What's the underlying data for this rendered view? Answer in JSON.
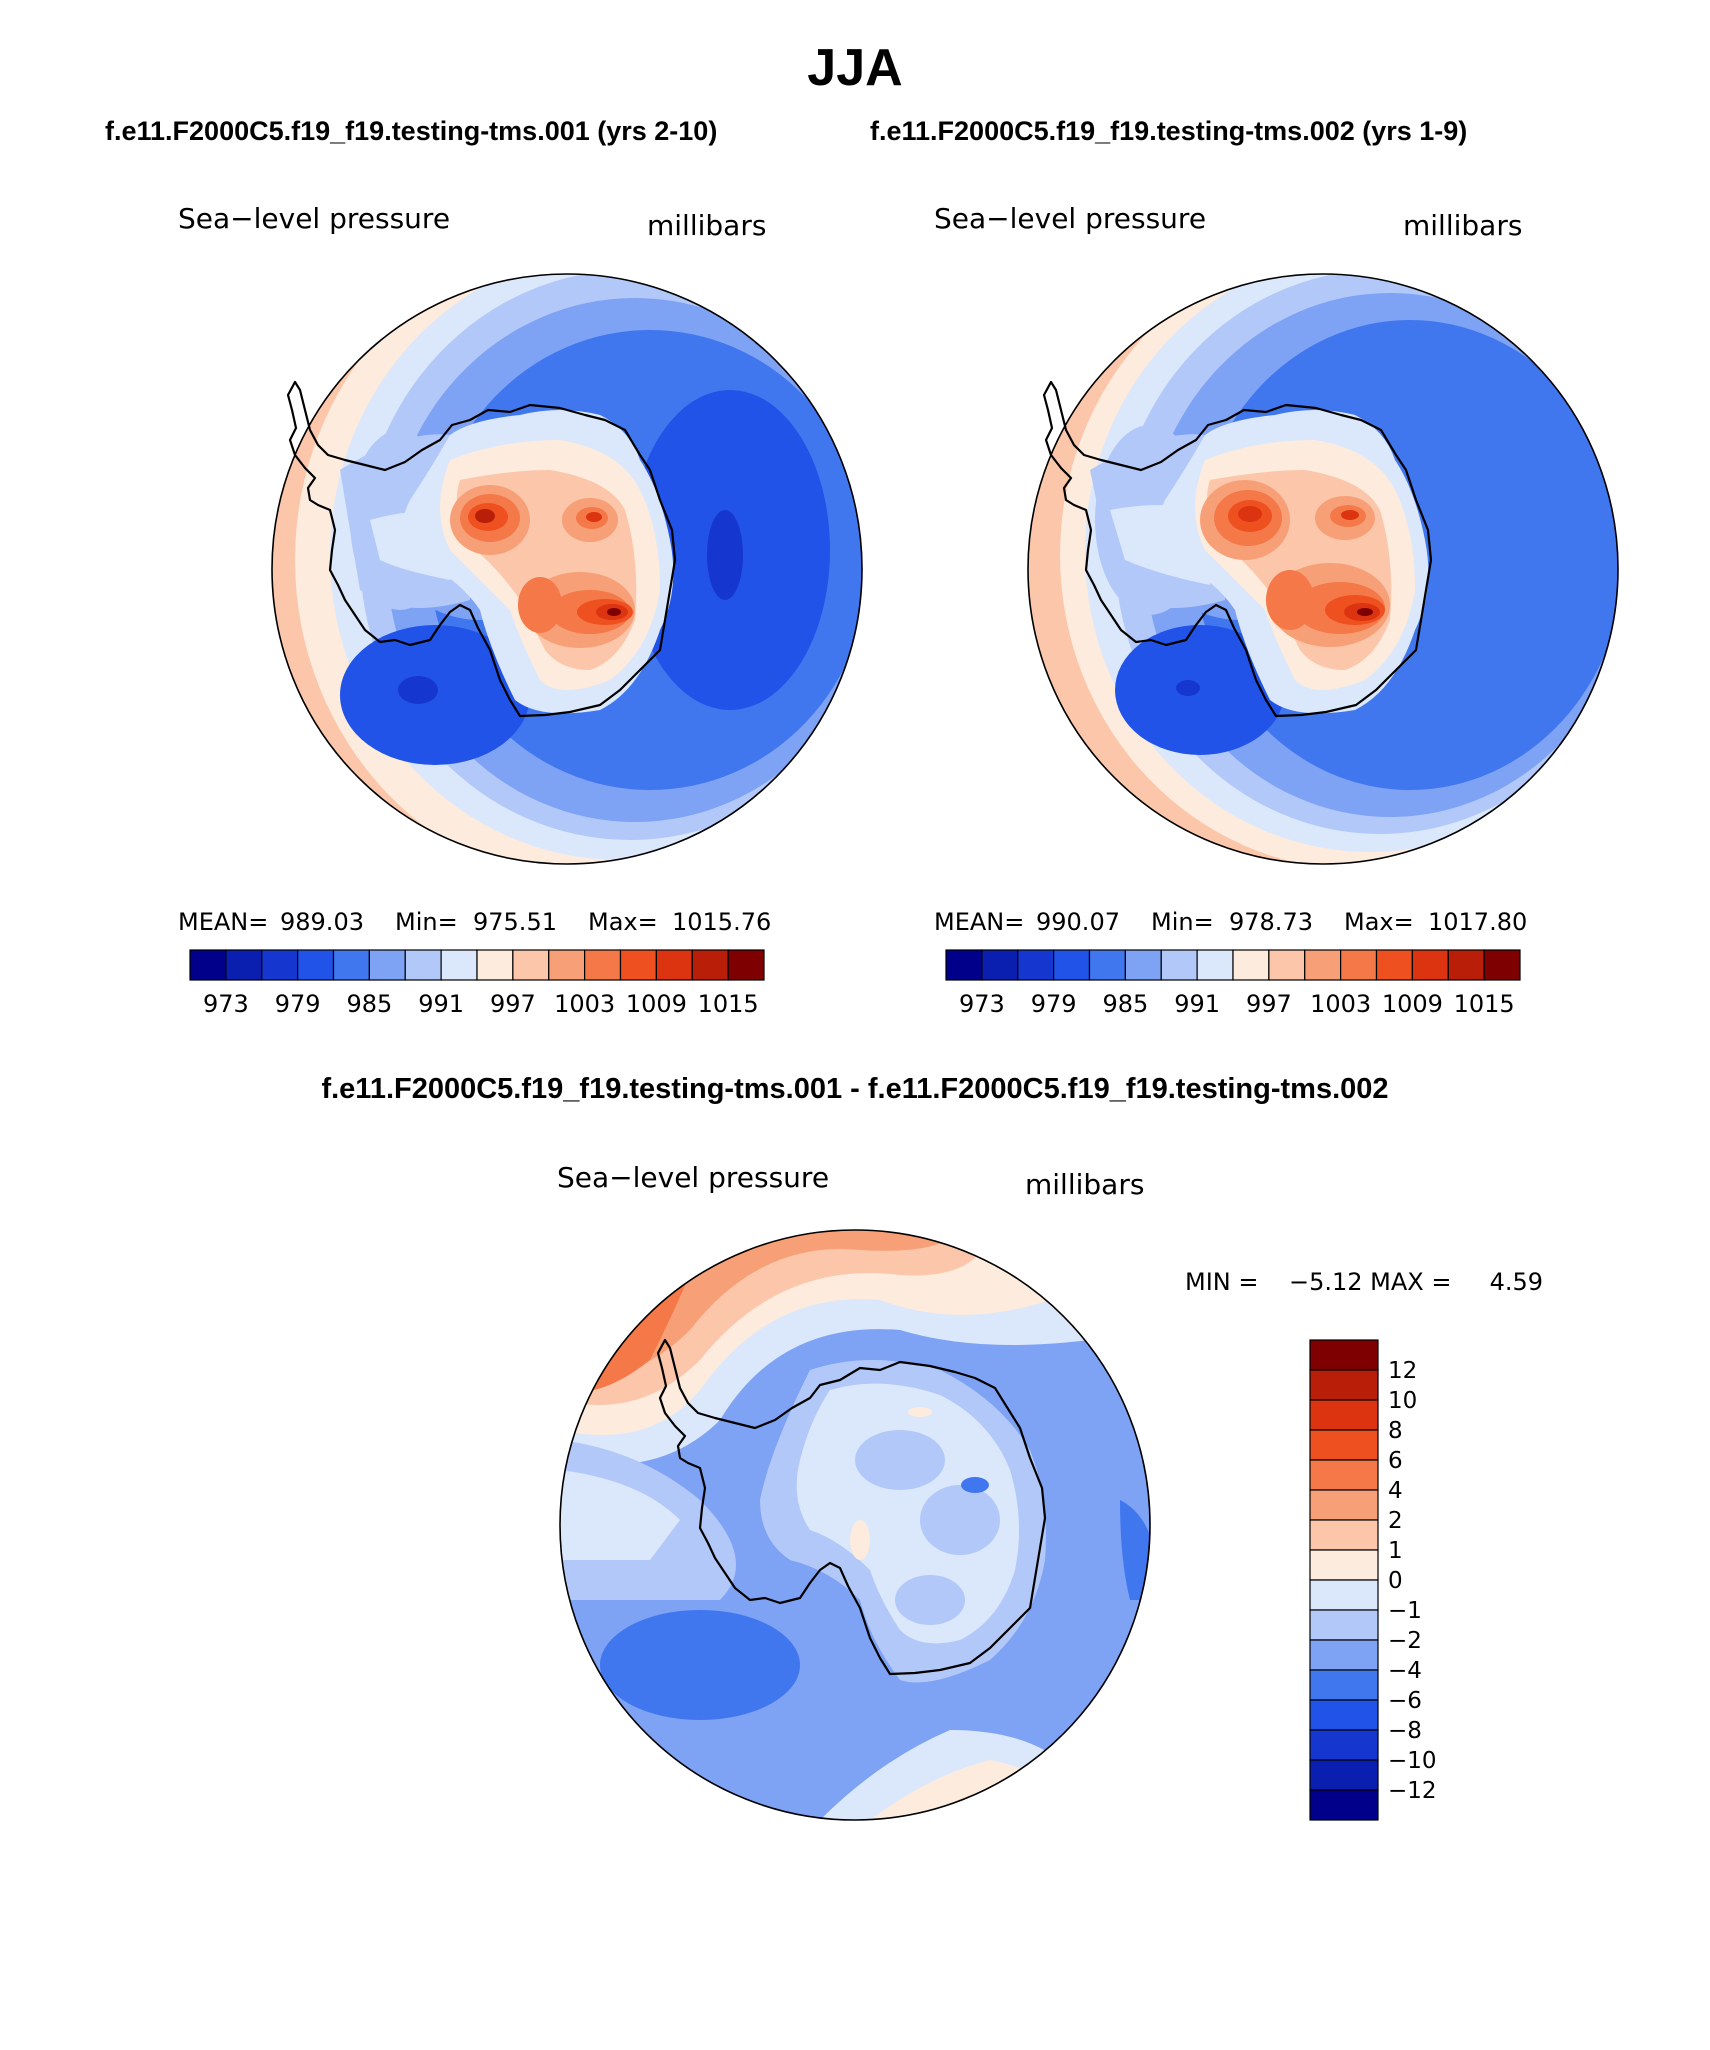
{
  "page": {
    "title": "JJA",
    "subtitle_left": "f.e11.F2000C5.f19_f19.testing-tms.001 (yrs 2-10)",
    "subtitle_right": "f.e11.F2000C5.f19_f19.testing-tms.002 (yrs 1-9)",
    "diff_title": "f.e11.F2000C5.f19_f19.testing-tms.001 - f.e11.F2000C5.f19_f19.testing-tms.002"
  },
  "colors": {
    "mean_scale": [
      "#00008b",
      "#0a1fb0",
      "#1537d0",
      "#2153e8",
      "#4177ee",
      "#7ea2f4",
      "#b2c8f8",
      "#dbe8fb",
      "#fdebdd",
      "#fbc6aa",
      "#f7a077",
      "#f47848",
      "#ef5020",
      "#dc3410",
      "#b81e08",
      "#7f0000"
    ],
    "diff_scale": [
      "#00008b",
      "#0a1fb0",
      "#1537d0",
      "#2153e8",
      "#4177ee",
      "#7ea2f4",
      "#b2c8f8",
      "#dbe8fb",
      "#fdebdd",
      "#fbc6aa",
      "#f7a077",
      "#f47848",
      "#ef5020",
      "#dc3410",
      "#b81e08",
      "#7f0000"
    ]
  },
  "panels": [
    {
      "id": "case1",
      "variable": "Sea−level pressure",
      "units": "millibars",
      "stats": {
        "mean_label": "MEAN=",
        "mean": "989.03",
        "min_label": "Min=",
        "min": "975.51",
        "max_label": "Max=",
        "max": "1015.76"
      },
      "colorbar_labels": [
        "973",
        "979",
        "985",
        "991",
        "997",
        "1003",
        "1009",
        "1015"
      ]
    },
    {
      "id": "case2",
      "variable": "Sea−level pressure",
      "units": "millibars",
      "stats": {
        "mean_label": "MEAN=",
        "mean": "990.07",
        "min_label": "Min=",
        "min": "978.73",
        "max_label": "Max=",
        "max": "1017.80"
      },
      "colorbar_labels": [
        "973",
        "979",
        "985",
        "991",
        "997",
        "1003",
        "1009",
        "1015"
      ]
    }
  ],
  "difference": {
    "variable": "Sea−level pressure",
    "units": "millibars",
    "minmax_text": "MIN =    −5.12 MAX =     4.59",
    "colorbar_labels": [
      "12",
      "10",
      "8",
      "6",
      "4",
      "2",
      "1",
      "0",
      "−1",
      "−2",
      "−4",
      "−6",
      "−8",
      "−10",
      "−12"
    ]
  }
}
